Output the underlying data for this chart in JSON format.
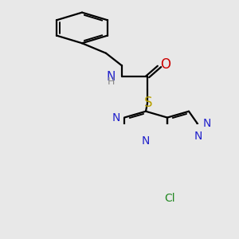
{
  "bg_color": "#e8e8e8",
  "bond_color": "#000000",
  "bond_width": 1.6,
  "figsize": [
    3.0,
    3.0
  ],
  "dpi": 100,
  "colors": {
    "N": "#2222cc",
    "O": "#cc0000",
    "S": "#b8a000",
    "Cl": "#228822",
    "H": "#888888",
    "C": "#000000"
  }
}
